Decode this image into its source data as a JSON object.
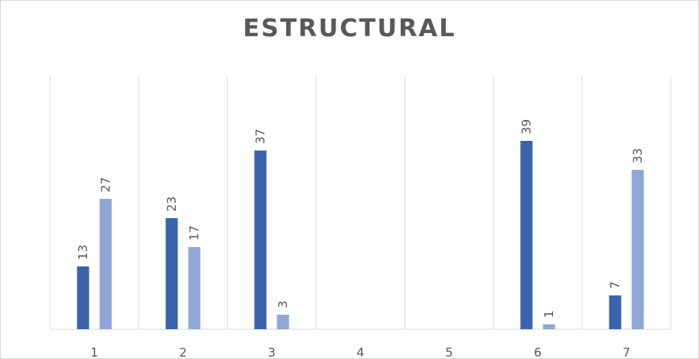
{
  "chart_data": {
    "type": "bar",
    "title": "ESTRUCTURAL",
    "categories": [
      "1",
      "2",
      "3",
      "4",
      "5",
      "6",
      "7"
    ],
    "series": [
      {
        "values": [
          13,
          23,
          37,
          null,
          null,
          39,
          7
        ]
      },
      {
        "values": [
          27,
          17,
          3,
          null,
          null,
          1,
          33
        ]
      }
    ],
    "data_labels": true,
    "gridlines": "vertical category separators",
    "legend": "none",
    "ylim": [
      0,
      40
    ],
    "colors": [
      "#3a63ad",
      "#8fa6d6"
    ]
  }
}
